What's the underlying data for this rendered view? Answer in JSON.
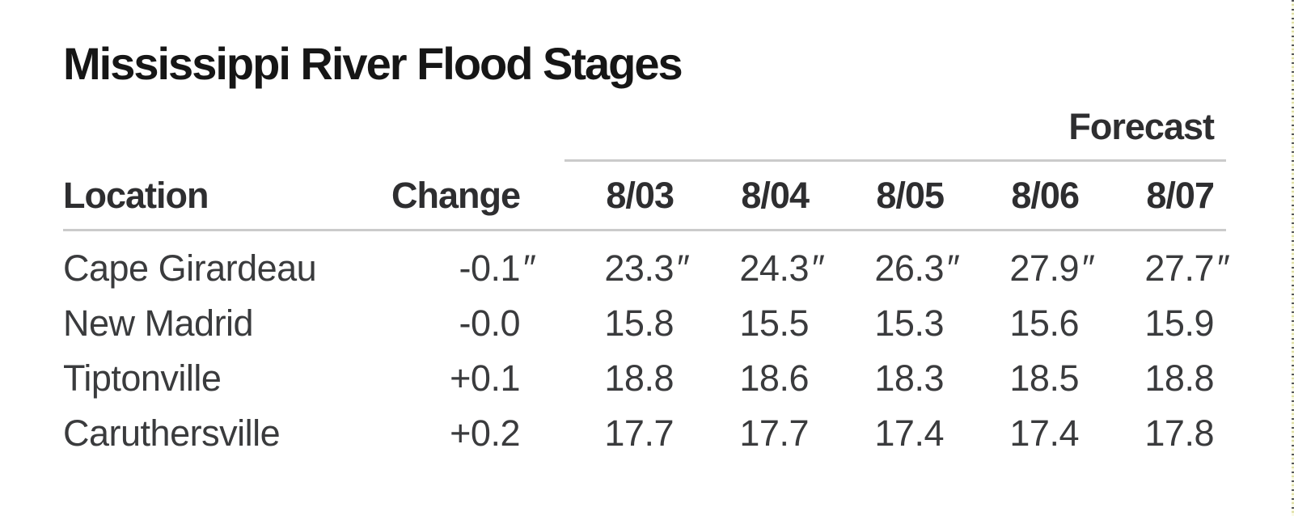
{
  "title": "Mississippi River Flood Stages",
  "colors": {
    "background": "#ffffff",
    "title_text": "#161616",
    "header_text": "#2e2e30",
    "body_text": "#3a3b3d",
    "divider": "#cbcbcb",
    "edge_dash_dark": "#55565a",
    "edge_dash_light": "#dedea4"
  },
  "table": {
    "forecast_label": "Forecast",
    "unit_symbol": "″",
    "columns": [
      "Location",
      "Change",
      "8/03",
      "8/04",
      "8/05",
      "8/06",
      "8/07"
    ],
    "rows": [
      {
        "location": "Cape Girardeau",
        "change": "-0.1",
        "unit": "″",
        "values": [
          "23.3",
          "24.3",
          "26.3",
          "27.9",
          "27.7"
        ]
      },
      {
        "location": "New Madrid",
        "change": "-0.0",
        "values": [
          "15.8",
          "15.5",
          "15.3",
          "15.6",
          "15.9"
        ]
      },
      {
        "location": "Tiptonville",
        "change": "+0.1",
        "values": [
          "18.8",
          "18.6",
          "18.3",
          "18.5",
          "18.8"
        ]
      },
      {
        "location": "Caruthersville",
        "change": "+0.2",
        "values": [
          "17.7",
          "17.7",
          "17.4",
          "17.4",
          "17.8"
        ]
      }
    ]
  },
  "chart_data": {
    "type": "table",
    "title": "Mississippi River Flood Stages",
    "group_header": {
      "label": "Forecast",
      "spans": [
        "8/03",
        "8/04",
        "8/05",
        "8/06",
        "8/07"
      ]
    },
    "columns": [
      "Location",
      "Change",
      "8/03",
      "8/04",
      "8/05",
      "8/06",
      "8/07"
    ],
    "unit_symbol": "″",
    "rows": [
      [
        "Cape Girardeau",
        "-0.1″",
        "23.3″",
        "24.3″",
        "26.3″",
        "27.9″",
        "27.7″"
      ],
      [
        "New Madrid",
        "-0.0",
        "15.8",
        "15.5",
        "15.3",
        "15.6",
        "15.9"
      ],
      [
        "Tiptonville",
        "+0.1",
        "18.8",
        "18.6",
        "18.3",
        "18.5",
        "18.8"
      ],
      [
        "Caruthersville",
        "+0.2",
        "17.7",
        "17.7",
        "17.4",
        "17.4",
        "17.8"
      ]
    ]
  }
}
